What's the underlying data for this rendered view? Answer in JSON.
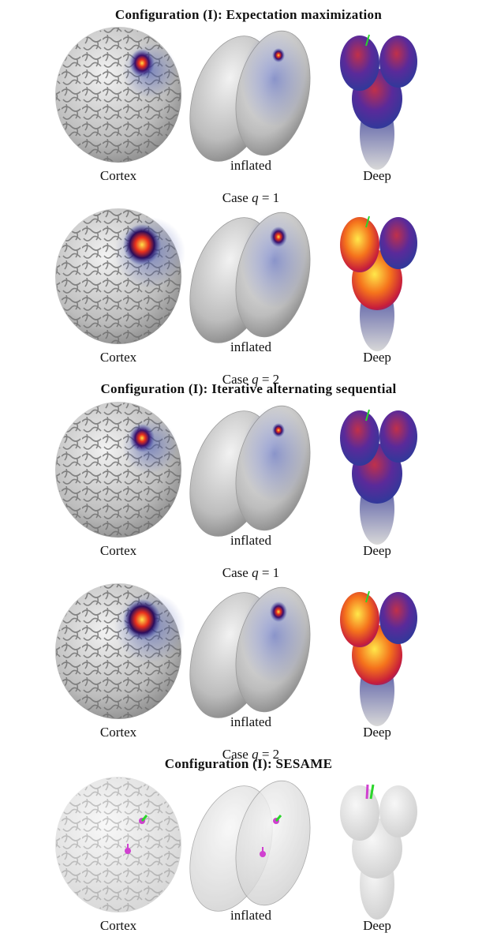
{
  "sections": [
    {
      "title": "Configuration (I): Expectation maximization",
      "rows": [
        {
          "labels": [
            "Cortex",
            "inflated",
            "Deep"
          ],
          "caption": {
            "prefix": "Case",
            "var": "q",
            "rest": "= 1"
          }
        },
        {
          "labels": [
            "Cortex",
            "inflated",
            "Deep"
          ],
          "caption": {
            "prefix": "Case",
            "var": "q",
            "rest": "= 2"
          }
        }
      ]
    },
    {
      "title": "Configuration (I): Iterative alternating sequential",
      "rows": [
        {
          "labels": [
            "Cortex",
            "inflated",
            "Deep"
          ],
          "caption": {
            "prefix": "Case",
            "var": "q",
            "rest": "= 1"
          }
        },
        {
          "labels": [
            "Cortex",
            "inflated",
            "Deep"
          ],
          "caption": {
            "prefix": "Case",
            "var": "q",
            "rest": "= 2"
          }
        }
      ]
    },
    {
      "title": "Configuration (I): SESAME",
      "rows": [
        {
          "labels": [
            "Cortex",
            "inflated",
            "Deep"
          ]
        }
      ]
    }
  ]
}
